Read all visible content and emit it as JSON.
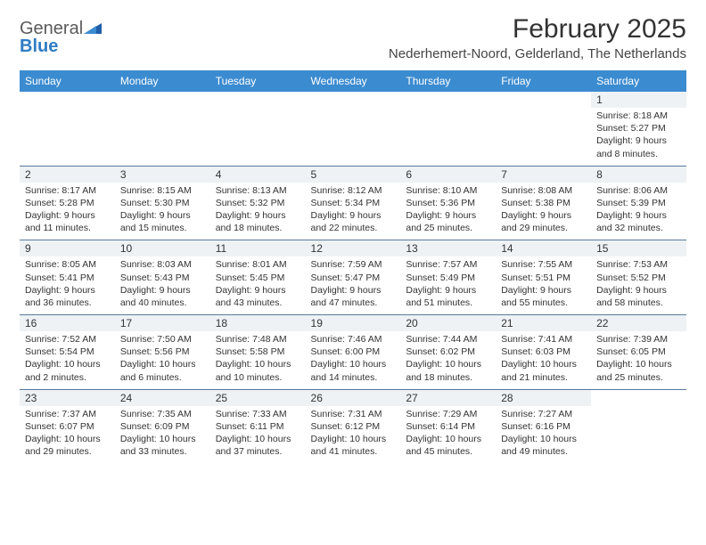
{
  "brand": {
    "name_part1": "General",
    "name_part2": "Blue"
  },
  "title": "February 2025",
  "location": "Nederhemert-Noord, Gelderland, The Netherlands",
  "colors": {
    "header_bg": "#3b8bd0",
    "header_text": "#ffffff",
    "daynum_bg": "#eef2f5",
    "rule": "#5a7a9a",
    "body_text": "#333333",
    "logo_gray": "#5a5a5a",
    "logo_blue": "#2f7cc4"
  },
  "weekdays": [
    "Sunday",
    "Monday",
    "Tuesday",
    "Wednesday",
    "Thursday",
    "Friday",
    "Saturday"
  ],
  "weeks": [
    [
      null,
      null,
      null,
      null,
      null,
      null,
      {
        "n": "1",
        "sunrise": "Sunrise: 8:18 AM",
        "sunset": "Sunset: 5:27 PM",
        "daylight": "Daylight: 9 hours and 8 minutes."
      }
    ],
    [
      {
        "n": "2",
        "sunrise": "Sunrise: 8:17 AM",
        "sunset": "Sunset: 5:28 PM",
        "daylight": "Daylight: 9 hours and 11 minutes."
      },
      {
        "n": "3",
        "sunrise": "Sunrise: 8:15 AM",
        "sunset": "Sunset: 5:30 PM",
        "daylight": "Daylight: 9 hours and 15 minutes."
      },
      {
        "n": "4",
        "sunrise": "Sunrise: 8:13 AM",
        "sunset": "Sunset: 5:32 PM",
        "daylight": "Daylight: 9 hours and 18 minutes."
      },
      {
        "n": "5",
        "sunrise": "Sunrise: 8:12 AM",
        "sunset": "Sunset: 5:34 PM",
        "daylight": "Daylight: 9 hours and 22 minutes."
      },
      {
        "n": "6",
        "sunrise": "Sunrise: 8:10 AM",
        "sunset": "Sunset: 5:36 PM",
        "daylight": "Daylight: 9 hours and 25 minutes."
      },
      {
        "n": "7",
        "sunrise": "Sunrise: 8:08 AM",
        "sunset": "Sunset: 5:38 PM",
        "daylight": "Daylight: 9 hours and 29 minutes."
      },
      {
        "n": "8",
        "sunrise": "Sunrise: 8:06 AM",
        "sunset": "Sunset: 5:39 PM",
        "daylight": "Daylight: 9 hours and 32 minutes."
      }
    ],
    [
      {
        "n": "9",
        "sunrise": "Sunrise: 8:05 AM",
        "sunset": "Sunset: 5:41 PM",
        "daylight": "Daylight: 9 hours and 36 minutes."
      },
      {
        "n": "10",
        "sunrise": "Sunrise: 8:03 AM",
        "sunset": "Sunset: 5:43 PM",
        "daylight": "Daylight: 9 hours and 40 minutes."
      },
      {
        "n": "11",
        "sunrise": "Sunrise: 8:01 AM",
        "sunset": "Sunset: 5:45 PM",
        "daylight": "Daylight: 9 hours and 43 minutes."
      },
      {
        "n": "12",
        "sunrise": "Sunrise: 7:59 AM",
        "sunset": "Sunset: 5:47 PM",
        "daylight": "Daylight: 9 hours and 47 minutes."
      },
      {
        "n": "13",
        "sunrise": "Sunrise: 7:57 AM",
        "sunset": "Sunset: 5:49 PM",
        "daylight": "Daylight: 9 hours and 51 minutes."
      },
      {
        "n": "14",
        "sunrise": "Sunrise: 7:55 AM",
        "sunset": "Sunset: 5:51 PM",
        "daylight": "Daylight: 9 hours and 55 minutes."
      },
      {
        "n": "15",
        "sunrise": "Sunrise: 7:53 AM",
        "sunset": "Sunset: 5:52 PM",
        "daylight": "Daylight: 9 hours and 58 minutes."
      }
    ],
    [
      {
        "n": "16",
        "sunrise": "Sunrise: 7:52 AM",
        "sunset": "Sunset: 5:54 PM",
        "daylight": "Daylight: 10 hours and 2 minutes."
      },
      {
        "n": "17",
        "sunrise": "Sunrise: 7:50 AM",
        "sunset": "Sunset: 5:56 PM",
        "daylight": "Daylight: 10 hours and 6 minutes."
      },
      {
        "n": "18",
        "sunrise": "Sunrise: 7:48 AM",
        "sunset": "Sunset: 5:58 PM",
        "daylight": "Daylight: 10 hours and 10 minutes."
      },
      {
        "n": "19",
        "sunrise": "Sunrise: 7:46 AM",
        "sunset": "Sunset: 6:00 PM",
        "daylight": "Daylight: 10 hours and 14 minutes."
      },
      {
        "n": "20",
        "sunrise": "Sunrise: 7:44 AM",
        "sunset": "Sunset: 6:02 PM",
        "daylight": "Daylight: 10 hours and 18 minutes."
      },
      {
        "n": "21",
        "sunrise": "Sunrise: 7:41 AM",
        "sunset": "Sunset: 6:03 PM",
        "daylight": "Daylight: 10 hours and 21 minutes."
      },
      {
        "n": "22",
        "sunrise": "Sunrise: 7:39 AM",
        "sunset": "Sunset: 6:05 PM",
        "daylight": "Daylight: 10 hours and 25 minutes."
      }
    ],
    [
      {
        "n": "23",
        "sunrise": "Sunrise: 7:37 AM",
        "sunset": "Sunset: 6:07 PM",
        "daylight": "Daylight: 10 hours and 29 minutes."
      },
      {
        "n": "24",
        "sunrise": "Sunrise: 7:35 AM",
        "sunset": "Sunset: 6:09 PM",
        "daylight": "Daylight: 10 hours and 33 minutes."
      },
      {
        "n": "25",
        "sunrise": "Sunrise: 7:33 AM",
        "sunset": "Sunset: 6:11 PM",
        "daylight": "Daylight: 10 hours and 37 minutes."
      },
      {
        "n": "26",
        "sunrise": "Sunrise: 7:31 AM",
        "sunset": "Sunset: 6:12 PM",
        "daylight": "Daylight: 10 hours and 41 minutes."
      },
      {
        "n": "27",
        "sunrise": "Sunrise: 7:29 AM",
        "sunset": "Sunset: 6:14 PM",
        "daylight": "Daylight: 10 hours and 45 minutes."
      },
      {
        "n": "28",
        "sunrise": "Sunrise: 7:27 AM",
        "sunset": "Sunset: 6:16 PM",
        "daylight": "Daylight: 10 hours and 49 minutes."
      },
      null
    ]
  ]
}
